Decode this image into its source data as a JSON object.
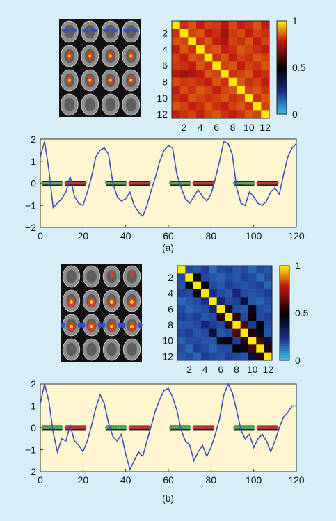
{
  "colors": {
    "background": "#d6eef8",
    "plot_bg": "#fdf6d0",
    "line": "#3b4fb8",
    "rest_dots": "#4caf50",
    "task_dots": "#c0392b",
    "map_low": "#39b5e6",
    "map_mid": "#000000",
    "map_high": "#ffe800"
  },
  "panels": [
    {
      "id": "a",
      "caption": "(a)",
      "brain_thumbnail": "brain-slices-4x4",
      "colorbar": {
        "ticks": [
          "1",
          "0.5",
          "0"
        ]
      },
      "matrix_axis": {
        "y_ticks": [
          "2",
          "4",
          "6",
          "8",
          "10",
          "12"
        ],
        "x_ticks": [
          "2",
          "4",
          "6",
          "8",
          "10",
          "12"
        ]
      },
      "timeseries_axis": {
        "y_ticks": [
          "2",
          "1",
          "0",
          "−1",
          "−2"
        ],
        "x_ticks": [
          "0",
          "20",
          "40",
          "60",
          "80",
          "100",
          "120"
        ]
      }
    },
    {
      "id": "b",
      "caption": "(b)",
      "brain_thumbnail": "brain-slices-4x4",
      "colorbar": {
        "ticks": [
          "1",
          "0.5",
          "0"
        ]
      },
      "matrix_axis": {
        "y_ticks": [
          "2",
          "4",
          "6",
          "8",
          "10",
          "12"
        ],
        "x_ticks": [
          "2",
          "4",
          "6",
          "8",
          "10",
          "12"
        ]
      },
      "timeseries_axis": {
        "y_ticks": [
          "2",
          "1",
          "0",
          "−1",
          "−2"
        ],
        "x_ticks": [
          "0",
          "20",
          "40",
          "60",
          "80",
          "100",
          "120"
        ]
      }
    }
  ],
  "chart_data": [
    {
      "type": "heatmap",
      "panel": "a",
      "size": 12,
      "clim": [
        0,
        1
      ],
      "description_values": "correlation matrix, diagonal = 1, off-diagonal high",
      "values": [
        [
          1,
          0.82,
          0.86,
          0.8,
          0.84,
          0.83,
          0.78,
          0.85,
          0.8,
          0.82,
          0.86,
          0.8
        ],
        [
          0.82,
          1,
          0.84,
          0.86,
          0.8,
          0.82,
          0.74,
          0.83,
          0.85,
          0.8,
          0.84,
          0.82
        ],
        [
          0.86,
          0.84,
          1,
          0.82,
          0.86,
          0.8,
          0.76,
          0.84,
          0.82,
          0.86,
          0.8,
          0.84
        ],
        [
          0.8,
          0.86,
          0.82,
          1,
          0.84,
          0.86,
          0.8,
          0.82,
          0.86,
          0.84,
          0.82,
          0.8
        ],
        [
          0.84,
          0.8,
          0.86,
          0.84,
          1,
          0.82,
          0.86,
          0.8,
          0.84,
          0.82,
          0.86,
          0.84
        ],
        [
          0.83,
          0.82,
          0.8,
          0.86,
          0.82,
          1,
          0.84,
          0.86,
          0.8,
          0.84,
          0.82,
          0.86
        ],
        [
          0.78,
          0.74,
          0.76,
          0.8,
          0.86,
          0.84,
          1,
          0.82,
          0.84,
          0.86,
          0.8,
          0.82
        ],
        [
          0.85,
          0.83,
          0.84,
          0.82,
          0.8,
          0.86,
          0.82,
          1,
          0.86,
          0.82,
          0.84,
          0.8
        ],
        [
          0.8,
          0.85,
          0.82,
          0.86,
          0.84,
          0.8,
          0.84,
          0.86,
          1,
          0.84,
          0.86,
          0.82
        ],
        [
          0.82,
          0.8,
          0.86,
          0.84,
          0.82,
          0.84,
          0.86,
          0.82,
          0.84,
          1,
          0.82,
          0.86
        ],
        [
          0.86,
          0.84,
          0.8,
          0.82,
          0.86,
          0.82,
          0.8,
          0.84,
          0.86,
          0.82,
          1,
          0.84
        ],
        [
          0.8,
          0.82,
          0.84,
          0.8,
          0.84,
          0.86,
          0.82,
          0.8,
          0.82,
          0.86,
          0.84,
          1
        ]
      ]
    },
    {
      "type": "line",
      "panel": "a",
      "xlim": [
        0,
        120
      ],
      "ylim": [
        -2,
        2
      ],
      "x": [
        0,
        2,
        4,
        6,
        8,
        10,
        12,
        14,
        16,
        18,
        20,
        22,
        24,
        26,
        28,
        30,
        32,
        34,
        36,
        38,
        40,
        42,
        44,
        46,
        48,
        50,
        52,
        54,
        56,
        58,
        60,
        62,
        64,
        66,
        68,
        70,
        72,
        74,
        76,
        78,
        80,
        82,
        84,
        86,
        88,
        90,
        92,
        94,
        96,
        98,
        100,
        102,
        104,
        106,
        108,
        110,
        112,
        114,
        116,
        118,
        120
      ],
      "y": [
        1.2,
        1.9,
        0.6,
        -1.1,
        -0.9,
        -0.7,
        -0.4,
        0.3,
        -0.6,
        -0.9,
        -1.0,
        -0.4,
        0.3,
        1.2,
        1.5,
        1.6,
        1.3,
        0.0,
        -0.6,
        -0.8,
        -0.7,
        -0.4,
        -1.0,
        -1.3,
        -1.5,
        -1.0,
        -0.3,
        0.3,
        1.0,
        1.5,
        1.7,
        1.6,
        0.4,
        -0.2,
        -0.7,
        -0.9,
        -0.6,
        -0.3,
        -0.6,
        -0.8,
        -0.5,
        0.2,
        1.0,
        1.9,
        1.8,
        1.3,
        -0.2,
        -0.9,
        -1.0,
        -0.4,
        -0.6,
        -0.9,
        -1.0,
        -0.8,
        -0.4,
        -0.2,
        -0.5,
        0.4,
        1.2,
        1.6,
        1.8
      ],
      "blocks": [
        {
          "type": "rest",
          "start": 1,
          "end": 10
        },
        {
          "type": "task",
          "start": 12,
          "end": 21
        },
        {
          "type": "rest",
          "start": 31,
          "end": 40
        },
        {
          "type": "task",
          "start": 42,
          "end": 51
        },
        {
          "type": "rest",
          "start": 61,
          "end": 70
        },
        {
          "type": "task",
          "start": 72,
          "end": 81
        },
        {
          "type": "rest",
          "start": 91,
          "end": 100
        },
        {
          "type": "task",
          "start": 102,
          "end": 111
        }
      ]
    },
    {
      "type": "heatmap",
      "panel": "b",
      "size": 12,
      "clim": [
        0,
        1
      ],
      "values": [
        [
          1,
          0.2,
          0.18,
          0.22,
          0.15,
          0.2,
          0.22,
          0.18,
          0.2,
          0.16,
          0.2,
          0.18
        ],
        [
          0.2,
          1,
          0.45,
          0.2,
          0.18,
          0.16,
          0.2,
          0.18,
          0.22,
          0.2,
          0.15,
          0.2
        ],
        [
          0.18,
          0.45,
          1,
          0.48,
          0.2,
          0.18,
          0.22,
          0.2,
          0.18,
          0.2,
          0.22,
          0.16
        ],
        [
          0.22,
          0.2,
          0.48,
          1,
          0.25,
          0.2,
          0.18,
          0.28,
          0.2,
          0.18,
          0.2,
          0.22
        ],
        [
          0.15,
          0.18,
          0.2,
          0.25,
          1,
          0.3,
          0.2,
          0.22,
          0.4,
          0.18,
          0.16,
          0.2
        ],
        [
          0.2,
          0.16,
          0.18,
          0.2,
          0.3,
          1,
          0.55,
          0.2,
          0.18,
          0.45,
          0.2,
          0.18
        ],
        [
          0.22,
          0.2,
          0.22,
          0.18,
          0.2,
          0.55,
          1,
          0.58,
          0.2,
          0.52,
          0.2,
          0.22
        ],
        [
          0.18,
          0.18,
          0.2,
          0.28,
          0.22,
          0.2,
          0.58,
          1,
          0.62,
          0.22,
          0.5,
          0.2
        ],
        [
          0.2,
          0.22,
          0.18,
          0.2,
          0.4,
          0.18,
          0.2,
          0.62,
          1,
          0.55,
          0.45,
          0.18
        ],
        [
          0.16,
          0.2,
          0.2,
          0.18,
          0.18,
          0.45,
          0.52,
          0.22,
          0.55,
          1,
          0.6,
          0.4
        ],
        [
          0.2,
          0.15,
          0.22,
          0.2,
          0.16,
          0.2,
          0.2,
          0.5,
          0.45,
          0.6,
          1,
          0.55
        ],
        [
          0.18,
          0.2,
          0.16,
          0.22,
          0.2,
          0.18,
          0.22,
          0.2,
          0.18,
          0.4,
          0.55,
          1
        ]
      ]
    },
    {
      "type": "line",
      "panel": "b",
      "xlim": [
        0,
        120
      ],
      "ylim": [
        -2,
        2
      ],
      "x": [
        0,
        2,
        4,
        6,
        8,
        10,
        12,
        14,
        16,
        18,
        20,
        22,
        24,
        26,
        28,
        30,
        32,
        34,
        36,
        38,
        40,
        42,
        44,
        46,
        48,
        50,
        52,
        54,
        56,
        58,
        60,
        62,
        64,
        66,
        68,
        70,
        72,
        74,
        76,
        78,
        80,
        82,
        84,
        86,
        88,
        90,
        92,
        94,
        96,
        98,
        100,
        102,
        104,
        106,
        108,
        110,
        112,
        114,
        116,
        118,
        120
      ],
      "y": [
        1.1,
        2.0,
        1.2,
        -0.2,
        -1.1,
        -0.5,
        -0.6,
        0.1,
        -0.6,
        -0.8,
        -1.1,
        -0.6,
        0.1,
        0.9,
        1.5,
        1.1,
        0.2,
        -0.4,
        -0.6,
        -0.3,
        -1.2,
        -1.9,
        -1.5,
        -1.1,
        -1.3,
        -0.6,
        0.1,
        0.8,
        1.3,
        1.7,
        1.8,
        1.4,
        0.8,
        -0.1,
        -0.6,
        -0.8,
        -1.5,
        -1.1,
        -0.8,
        -1.3,
        -0.9,
        -0.3,
        0.4,
        1.5,
        2.0,
        1.6,
        0.8,
        -0.1,
        -0.5,
        -0.3,
        -0.9,
        -0.5,
        -0.3,
        -0.6,
        -1.1,
        -0.6,
        0.0,
        0.5,
        0.7,
        1.0,
        1.0
      ]
    }
  ]
}
